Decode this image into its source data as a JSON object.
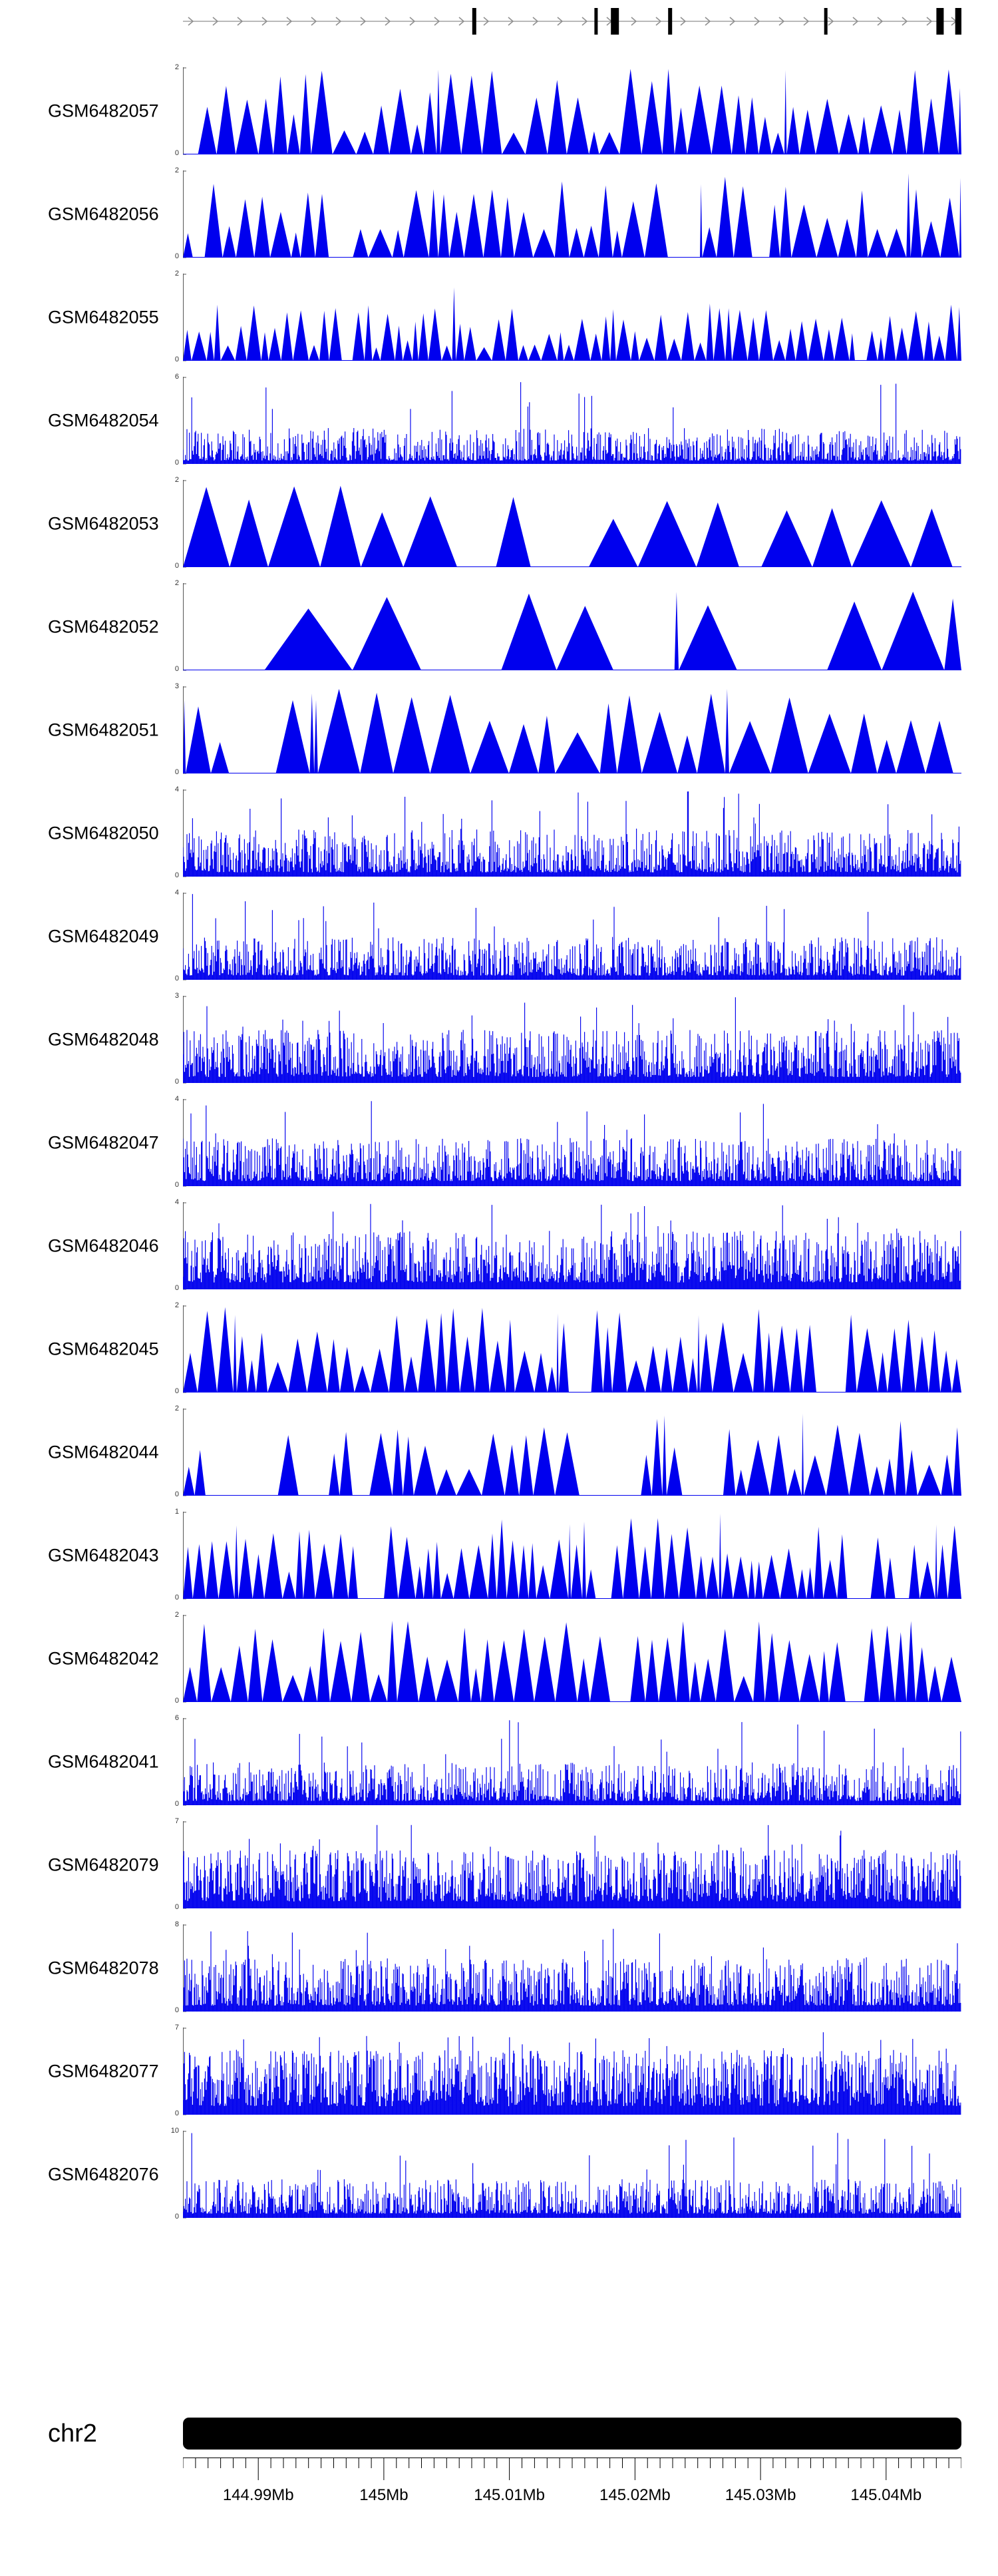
{
  "page": {
    "background": "#ffffff"
  },
  "chart_data": {
    "type": "area",
    "subtype": "genome-coverage-tracks",
    "title": "",
    "chromosome_label": "chr2",
    "region_mb": {
      "start": 144.984,
      "end": 145.046
    },
    "accent_color": "#0000ee",
    "axis_color": "#555555",
    "legend": "none",
    "grid": false,
    "tracks": [
      {
        "label": "GSM6482057",
        "ymin": 0,
        "ymax": 2,
        "style": "triangles",
        "seed": 7,
        "params": {
          "minW": 15,
          "maxW": 40,
          "hMin": 0.25,
          "hMax": 1.0,
          "gapP": 0.05,
          "gapW": 40,
          "spikeP": 0.05
        }
      },
      {
        "label": "GSM6482056",
        "ymin": 0,
        "ymax": 2,
        "style": "triangles",
        "seed": 13,
        "params": {
          "minW": 13,
          "maxW": 38,
          "hMin": 0.25,
          "hMax": 0.95,
          "gapP": 0.05,
          "gapW": 35,
          "spikeP": 0.07
        }
      },
      {
        "label": "GSM6482055",
        "ymin": 0,
        "ymax": 2,
        "style": "triangles",
        "seed": 21,
        "params": {
          "minW": 8,
          "maxW": 25,
          "hMin": 0.15,
          "hMax": 0.7,
          "gapP": 0.06,
          "gapW": 30,
          "spikeP": 0.05
        }
      },
      {
        "label": "GSM6482054",
        "ymin": 0,
        "ymax": 6,
        "style": "spikes",
        "seed": 34,
        "params": {
          "floor": 0.04,
          "base": 0.38,
          "pow": 2.2,
          "tallP": 0.015,
          "step": 1.2
        }
      },
      {
        "label": "GSM6482053",
        "ymin": 0,
        "ymax": 2,
        "style": "triangles",
        "seed": 42,
        "params": {
          "minW": 50,
          "maxW": 95,
          "hMin": 0.55,
          "hMax": 1.0,
          "gapP": 0.1,
          "gapW": 60,
          "spikeP": 0.0
        }
      },
      {
        "label": "GSM6482052",
        "ymin": 0,
        "ymax": 2,
        "style": "triangles",
        "seed": 55,
        "params": {
          "minW": 80,
          "maxW": 150,
          "hMin": 0.7,
          "hMax": 1.0,
          "gapP": 0.18,
          "gapW": 110,
          "spikeP": 0.12,
          "startGap": 125
        }
      },
      {
        "label": "GSM6482051",
        "ymin": 0,
        "ymax": 3,
        "style": "triangles",
        "seed": 63,
        "params": {
          "minW": 25,
          "maxW": 70,
          "hMin": 0.35,
          "hMax": 1.0,
          "gapP": 0.08,
          "gapW": 50,
          "spikeP": 0.15
        }
      },
      {
        "label": "GSM6482050",
        "ymin": 0,
        "ymax": 4,
        "style": "spikes",
        "seed": 71,
        "params": {
          "floor": 0.05,
          "base": 0.5,
          "pow": 2.0,
          "tallP": 0.02,
          "step": 1.2
        }
      },
      {
        "label": "GSM6482049",
        "ymin": 0,
        "ymax": 4,
        "style": "spikes",
        "seed": 88,
        "params": {
          "floor": 0.05,
          "base": 0.45,
          "pow": 2.0,
          "tallP": 0.02,
          "step": 1.2
        }
      },
      {
        "label": "GSM6482048",
        "ymin": 0,
        "ymax": 3,
        "style": "spikes",
        "seed": 91,
        "params": {
          "floor": 0.07,
          "base": 0.55,
          "pow": 1.8,
          "tallP": 0.02,
          "step": 1.2
        }
      },
      {
        "label": "GSM6482047",
        "ymin": 0,
        "ymax": 4,
        "style": "spikes",
        "seed": 104,
        "params": {
          "floor": 0.06,
          "base": 0.5,
          "pow": 1.9,
          "tallP": 0.02,
          "step": 1.2
        }
      },
      {
        "label": "GSM6482046",
        "ymin": 0,
        "ymax": 4,
        "style": "spikes",
        "seed": 117,
        "params": {
          "floor": 0.08,
          "base": 0.6,
          "pow": 1.7,
          "tallP": 0.02,
          "step": 1.2
        }
      },
      {
        "label": "GSM6482045",
        "ymin": 0,
        "ymax": 2,
        "style": "triangles",
        "seed": 123,
        "params": {
          "minW": 12,
          "maxW": 32,
          "hMin": 0.3,
          "hMax": 1.0,
          "gapP": 0.04,
          "gapW": 30,
          "spikeP": 0.03
        }
      },
      {
        "label": "GSM6482044",
        "ymin": 0,
        "ymax": 2,
        "style": "triangles",
        "seed": 131,
        "params": {
          "minW": 15,
          "maxW": 40,
          "hMin": 0.3,
          "hMax": 0.9,
          "gapP": 0.12,
          "gapW": 45,
          "spikeP": 0.05
        }
      },
      {
        "label": "GSM6482043",
        "ymin": 0,
        "ymax": 1,
        "style": "triangles",
        "seed": 147,
        "params": {
          "minW": 10,
          "maxW": 28,
          "hMin": 0.3,
          "hMax": 0.95,
          "gapP": 0.05,
          "gapW": 30,
          "spikeP": 0.06
        }
      },
      {
        "label": "GSM6482042",
        "ymin": 0,
        "ymax": 2,
        "style": "triangles",
        "seed": 152,
        "params": {
          "minW": 12,
          "maxW": 34,
          "hMin": 0.3,
          "hMax": 0.95,
          "gapP": 0.06,
          "gapW": 35,
          "spikeP": 0.06
        }
      },
      {
        "label": "GSM6482041",
        "ymin": 0,
        "ymax": 6,
        "style": "spikes",
        "seed": 166,
        "params": {
          "floor": 0.05,
          "base": 0.45,
          "pow": 2.0,
          "tallP": 0.02,
          "step": 1.2
        }
      },
      {
        "label": "GSM6482079",
        "ymin": 0,
        "ymax": 7,
        "style": "spikes",
        "seed": 178,
        "params": {
          "floor": 0.08,
          "base": 0.6,
          "pow": 1.6,
          "tallP": 0.03,
          "step": 1.2
        }
      },
      {
        "label": "GSM6482078",
        "ymin": 0,
        "ymax": 8,
        "style": "spikes",
        "seed": 183,
        "params": {
          "floor": 0.07,
          "base": 0.55,
          "pow": 1.8,
          "tallP": 0.025,
          "step": 1.2
        }
      },
      {
        "label": "GSM6482077",
        "ymin": 0,
        "ymax": 7,
        "style": "spikes",
        "seed": 197,
        "params": {
          "floor": 0.1,
          "base": 0.65,
          "pow": 1.5,
          "tallP": 0.03,
          "step": 1.2
        }
      },
      {
        "label": "GSM6482076",
        "ymin": 0,
        "ymax": 10,
        "style": "spikes",
        "seed": 205,
        "params": {
          "floor": 0.05,
          "base": 0.4,
          "pow": 2.2,
          "tallP": 0.015,
          "step": 1.2
        }
      }
    ],
    "gene_model": {
      "strand": "+",
      "line_color": "#909090",
      "exon_color": "#000000",
      "arrow_spacing_px": 37,
      "exons_mb": [
        {
          "pos": 145.0072,
          "w": 6,
          "tall": true
        },
        {
          "pos": 145.0169,
          "w": 5,
          "tall": true
        },
        {
          "pos": 145.0184,
          "w": 12,
          "tall": true
        },
        {
          "pos": 145.0228,
          "w": 6,
          "tall": true
        },
        {
          "pos": 145.0352,
          "w": 5,
          "tall": true
        },
        {
          "pos": 145.0443,
          "w": 11,
          "tall": true
        },
        {
          "pos": 145.0458,
          "w": 11,
          "tall": true
        }
      ]
    },
    "axis": {
      "tick_labels": [
        "144.99Mb",
        "145Mb",
        "145.01Mb",
        "145.02Mb",
        "145.03Mb",
        "145.04Mb"
      ],
      "tick_positions_mb": [
        144.99,
        145.0,
        145.01,
        145.02,
        145.03,
        145.04
      ],
      "minor_tick_step_mb": 0.001,
      "tick_color": "#000000"
    }
  }
}
